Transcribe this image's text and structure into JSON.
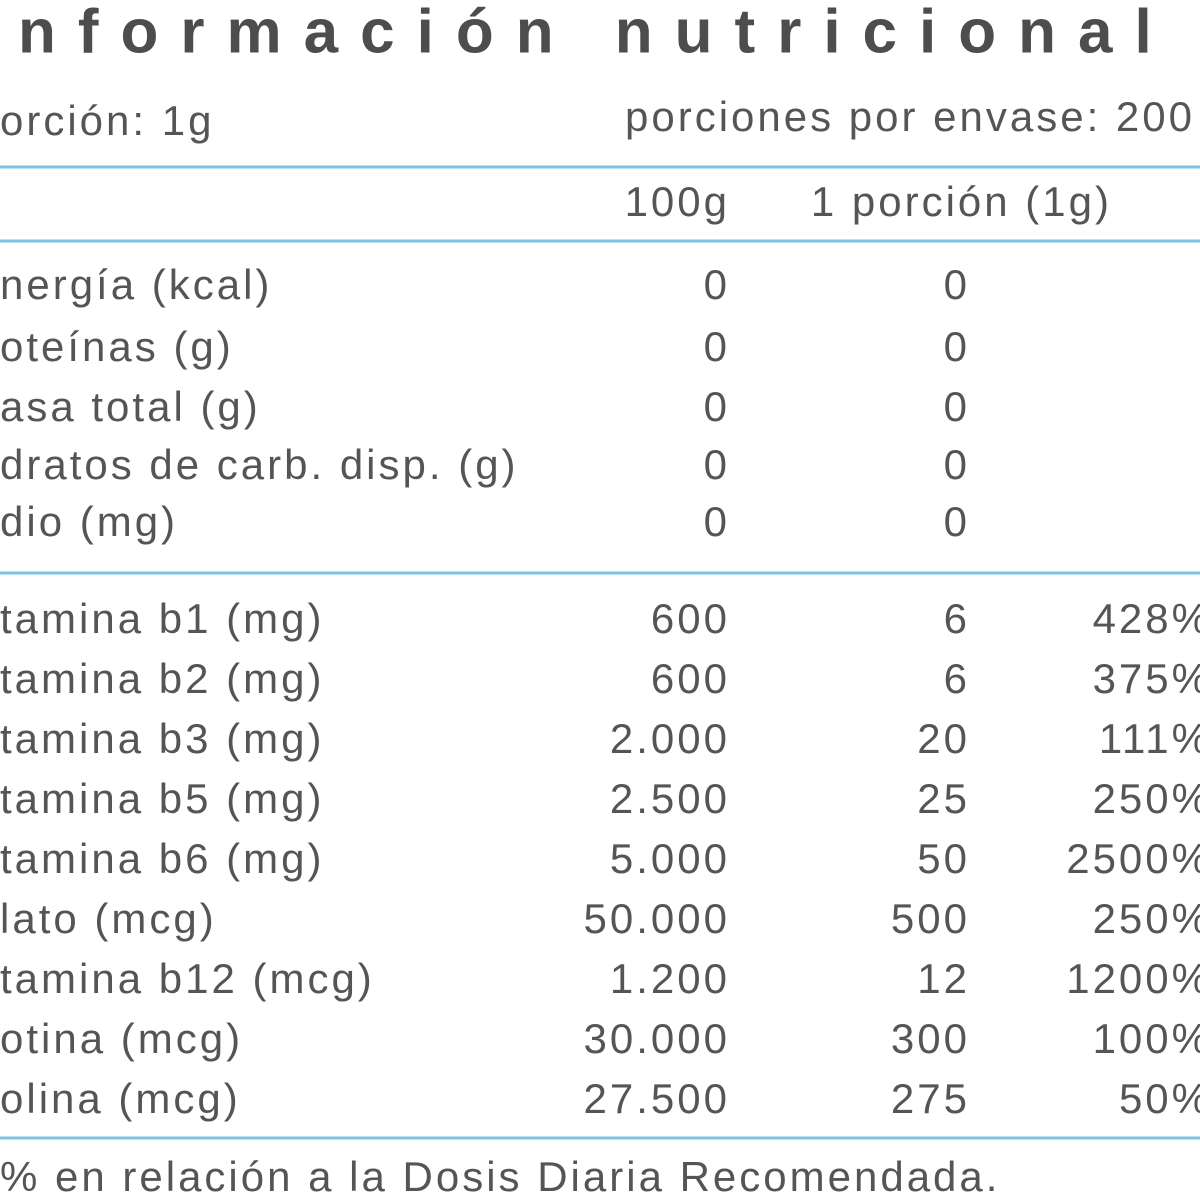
{
  "header": {
    "title": "nformación nutricional",
    "serving": "orción: 1g",
    "servings_per_container": "porciones por envase: 200"
  },
  "table": {
    "columns": [
      "100g",
      "1 porción (1g)"
    ],
    "macros": [
      [
        "nergía (kcal)",
        "0",
        "0"
      ],
      [
        "oteínas (g)",
        "0",
        "0"
      ],
      [
        "asa total (g)",
        "0",
        "0"
      ],
      [
        "dratos de carb. disp. (g)",
        "0",
        "0"
      ],
      [
        "dio (mg)",
        "0",
        "0"
      ]
    ],
    "vitamins": [
      [
        "tamina b1 (mg)",
        "600",
        "6",
        "428%"
      ],
      [
        "tamina b2 (mg)",
        "600",
        "6",
        "375%"
      ],
      [
        "tamina b3 (mg)",
        "2.000",
        "20",
        "111%"
      ],
      [
        "tamina b5 (mg)",
        "2.500",
        "25",
        "250%"
      ],
      [
        "tamina b6 (mg)",
        "5.000",
        "50",
        "2500%"
      ],
      [
        "lato (mcg)",
        "50.000",
        "500",
        "250%"
      ],
      [
        "tamina b12 (mcg)",
        "1.200",
        "12",
        "1200%"
      ],
      [
        "otina (mcg)",
        "30.000",
        "300",
        "100%"
      ],
      [
        "olina (mcg)",
        "27.500",
        "275",
        "50%"
      ]
    ]
  },
  "footer": "% en relación a la Dosis Diaria Recomendada."
}
